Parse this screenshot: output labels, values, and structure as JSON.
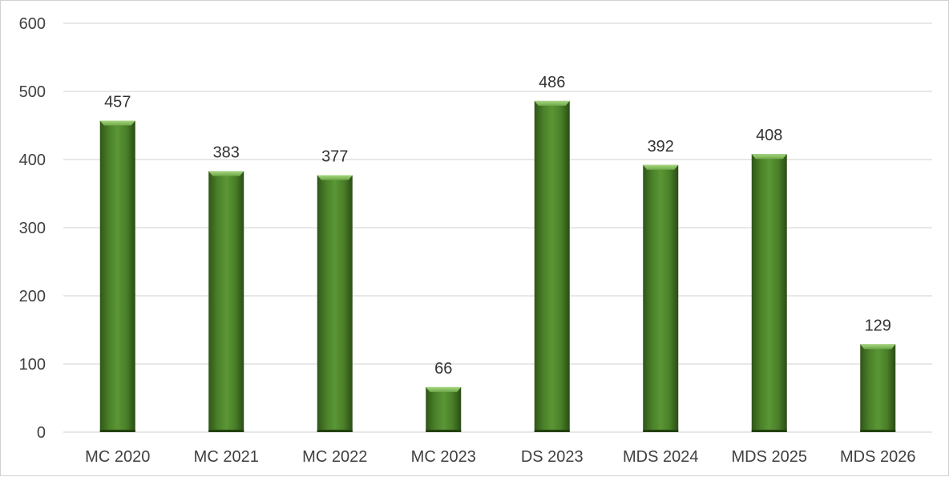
{
  "chart_data": {
    "type": "bar",
    "title": "",
    "xlabel": "",
    "ylabel": "",
    "categories": [
      "MC 2020",
      "MC 2021",
      "MC 2022",
      "MC 2023",
      "DS 2023",
      "MDS 2024",
      "MDS 2025",
      "MDS 2026"
    ],
    "values": [
      457,
      383,
      377,
      66,
      486,
      392,
      408,
      129
    ],
    "ylim": [
      0,
      600
    ],
    "yticks": [
      0,
      100,
      200,
      300,
      400,
      500,
      600
    ],
    "grid": true,
    "legend": "none",
    "data_labels": true,
    "colors": {
      "bar_dark": "#2f5518",
      "bar_mid": "#4f8a2c",
      "bar_light": "#6fa84a",
      "bar_top": "#8cc466",
      "grid": "#d9d9d9",
      "text": "#404040"
    }
  }
}
